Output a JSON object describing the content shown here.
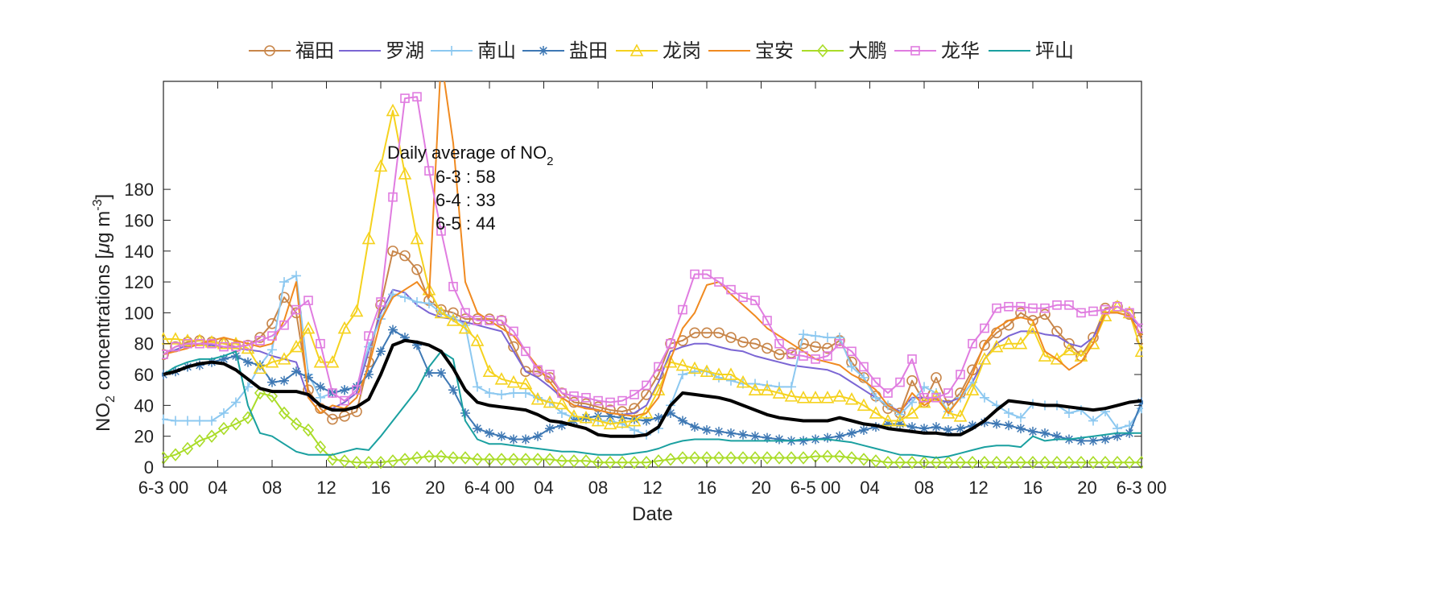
{
  "chart_data": {
    "type": "line",
    "xlabel": "Date",
    "ylabel_parts": [
      "NO",
      "2",
      " concentrations [",
      "μ",
      "g m",
      "-3",
      "]"
    ],
    "ylim": [
      0,
      250
    ],
    "yticks": [
      0,
      20,
      40,
      60,
      80,
      100,
      120,
      140,
      160,
      180
    ],
    "xlim": [
      0,
      72
    ],
    "xticks": [
      {
        "x": 0,
        "label": "6-3 00"
      },
      {
        "x": 4,
        "label": "04"
      },
      {
        "x": 8,
        "label": "08"
      },
      {
        "x": 12,
        "label": "12"
      },
      {
        "x": 16,
        "label": "16"
      },
      {
        "x": 20,
        "label": "20"
      },
      {
        "x": 24,
        "label": "6-4 00"
      },
      {
        "x": 28,
        "label": "04"
      },
      {
        "x": 32,
        "label": "08"
      },
      {
        "x": 36,
        "label": "12"
      },
      {
        "x": 40,
        "label": "16"
      },
      {
        "x": 44,
        "label": "20"
      },
      {
        "x": 48,
        "label": "6-5 00"
      },
      {
        "x": 52,
        "label": "04"
      },
      {
        "x": 56,
        "label": "08"
      },
      {
        "x": 60,
        "label": "12"
      },
      {
        "x": 64,
        "label": "16"
      },
      {
        "x": 68,
        "label": "20"
      },
      {
        "x": 72,
        "label": "6-3 00"
      }
    ],
    "grid": false,
    "legend_position": "top",
    "annotation": {
      "title": "Daily average of NO",
      "title_sub": "2",
      "lines": [
        "6-3 : 58",
        "6-4 : 33",
        "6-5 : 44"
      ]
    },
    "series": [
      {
        "name": "福田",
        "color": "#c8864a",
        "marker": "circle",
        "width": 2,
        "values": [
          73,
          78,
          81,
          82,
          81,
          80,
          78,
          79,
          84,
          93,
          110,
          100,
          50,
          38,
          31,
          33,
          36,
          68,
          105,
          140,
          137,
          128,
          108,
          102,
          100,
          96,
          96,
          96,
          95,
          78,
          62,
          62,
          58,
          48,
          42,
          41,
          39,
          37,
          36,
          38,
          47,
          60,
          80,
          82,
          87,
          87,
          87,
          84,
          81,
          80,
          77,
          73,
          74,
          80,
          78,
          77,
          82,
          68,
          58,
          46,
          38,
          35,
          56,
          42,
          58,
          40,
          48,
          63,
          79,
          87,
          92,
          100,
          95,
          99,
          88,
          80,
          72,
          84,
          103,
          104,
          99,
          83
        ]
      },
      {
        "name": "罗湖",
        "color": "#7b66d4",
        "marker": "none",
        "width": 2,
        "values": [
          73,
          76,
          79,
          80,
          79,
          78,
          77,
          76,
          75,
          72,
          70,
          68,
          45,
          40,
          38,
          42,
          48,
          75,
          100,
          115,
          113,
          105,
          100,
          97,
          96,
          94,
          92,
          90,
          88,
          75,
          62,
          58,
          52,
          45,
          40,
          39,
          37,
          35,
          34,
          35,
          40,
          55,
          75,
          78,
          80,
          80,
          78,
          76,
          75,
          72,
          70,
          68,
          66,
          65,
          64,
          63,
          60,
          55,
          50,
          45,
          40,
          36,
          45,
          45,
          44,
          42,
          45,
          55,
          70,
          80,
          85,
          88,
          88,
          86,
          85,
          80,
          78,
          84,
          100,
          100,
          98,
          90
        ]
      },
      {
        "name": "南山",
        "color": "#8cc8f0",
        "marker": "plus",
        "width": 2,
        "values": [
          31,
          30,
          30,
          30,
          30,
          35,
          42,
          52,
          66,
          76,
          120,
          124,
          60,
          45,
          48,
          50,
          52,
          78,
          96,
          112,
          110,
          107,
          106,
          100,
          97,
          92,
          52,
          48,
          47,
          48,
          48,
          45,
          42,
          35,
          32,
          31,
          30,
          30,
          28,
          24,
          21,
          25,
          40,
          60,
          62,
          62,
          58,
          56,
          54,
          54,
          53,
          52,
          52,
          86,
          85,
          84,
          84,
          65,
          58,
          45,
          40,
          34,
          42,
          52,
          48,
          36,
          45,
          55,
          45,
          40,
          35,
          32,
          41,
          40,
          40,
          35,
          37,
          30,
          36,
          25,
          27,
          38
        ]
      },
      {
        "name": "盐田",
        "color": "#3e78b4",
        "marker": "asterisk",
        "width": 2,
        "values": [
          60,
          62,
          65,
          66,
          68,
          70,
          72,
          68,
          66,
          55,
          56,
          62,
          58,
          52,
          48,
          50,
          52,
          60,
          75,
          89,
          84,
          79,
          61,
          61,
          50,
          35,
          25,
          22,
          20,
          18,
          18,
          20,
          25,
          27,
          30,
          32,
          33,
          33,
          32,
          31,
          30,
          32,
          35,
          30,
          26,
          24,
          23,
          22,
          21,
          20,
          19,
          18,
          17,
          17,
          18,
          19,
          20,
          22,
          24,
          26,
          28,
          28,
          26,
          25,
          26,
          24,
          25,
          27,
          29,
          28,
          27,
          25,
          23,
          22,
          20,
          18,
          17,
          17,
          18,
          20,
          22,
          42
        ]
      },
      {
        "name": "龙岗",
        "color": "#f5d21e",
        "marker": "triangle",
        "width": 2,
        "values": [
          83,
          83,
          82,
          82,
          81,
          80,
          80,
          77,
          64,
          68,
          70,
          78,
          90,
          68,
          68,
          90,
          101,
          148,
          195,
          231,
          190,
          148,
          115,
          100,
          95,
          90,
          82,
          62,
          57,
          55,
          54,
          44,
          42,
          41,
          33,
          32,
          30,
          28,
          29,
          30,
          35,
          50,
          68,
          66,
          64,
          62,
          60,
          60,
          55,
          50,
          50,
          48,
          46,
          45,
          45,
          45,
          46,
          44,
          40,
          35,
          30,
          30,
          35,
          42,
          46,
          35,
          33,
          50,
          70,
          78,
          80,
          80,
          90,
          72,
          70,
          76,
          72,
          80,
          98,
          104,
          100,
          75
        ]
      },
      {
        "name": "宝安",
        "color": "#f08a20",
        "marker": "none",
        "width": 2,
        "values": [
          73,
          75,
          77,
          80,
          82,
          84,
          82,
          80,
          78,
          80,
          95,
          120,
          45,
          35,
          40,
          38,
          45,
          65,
          95,
          110,
          115,
          120,
          110,
          265,
          210,
          120,
          100,
          95,
          90,
          85,
          75,
          65,
          55,
          45,
          40,
          38,
          37,
          35,
          34,
          33,
          35,
          45,
          70,
          90,
          100,
          118,
          120,
          112,
          105,
          98,
          90,
          85,
          80,
          75,
          70,
          68,
          66,
          60,
          56,
          50,
          40,
          35,
          48,
          40,
          45,
          35,
          45,
          60,
          80,
          90,
          95,
          97,
          95,
          75,
          70,
          63,
          68,
          80,
          100,
          100,
          98,
          85
        ]
      },
      {
        "name": "大鹏",
        "color": "#aadc28",
        "marker": "diamond",
        "width": 2,
        "values": [
          6,
          8,
          12,
          17,
          20,
          25,
          28,
          32,
          48,
          46,
          35,
          28,
          24,
          13,
          5,
          4,
          3,
          3,
          3,
          4,
          5,
          6,
          7,
          7,
          6,
          6,
          5,
          5,
          5,
          5,
          5,
          5,
          5,
          4,
          4,
          4,
          3,
          3,
          3,
          3,
          3,
          4,
          5,
          6,
          6,
          6,
          6,
          6,
          6,
          6,
          6,
          6,
          6,
          6,
          7,
          7,
          7,
          6,
          5,
          4,
          3,
          3,
          3,
          3,
          3,
          3,
          3,
          3,
          3,
          3,
          3,
          3,
          3,
          3,
          3,
          3,
          3,
          3,
          3,
          3,
          3,
          3
        ]
      },
      {
        "name": "龙华",
        "color": "#e07ce0",
        "marker": "square",
        "width": 2,
        "values": [
          73,
          78,
          80,
          80,
          80,
          78,
          78,
          79,
          82,
          85,
          92,
          102,
          108,
          80,
          48,
          43,
          50,
          85,
          107,
          175,
          239,
          240,
          192,
          153,
          117,
          100,
          95,
          95,
          95,
          88,
          75,
          63,
          60,
          48,
          46,
          45,
          43,
          42,
          43,
          47,
          53,
          65,
          80,
          102,
          125,
          125,
          120,
          115,
          110,
          108,
          95,
          80,
          73,
          72,
          70,
          72,
          80,
          75,
          65,
          55,
          48,
          55,
          70,
          45,
          45,
          48,
          60,
          80,
          90,
          103,
          104,
          104,
          103,
          103,
          105,
          105,
          100,
          101,
          102,
          104,
          100,
          90
        ]
      },
      {
        "name": "坪山",
        "color": "#1aa0a0",
        "marker": "none",
        "width": 2,
        "values": [
          60,
          65,
          68,
          70,
          70,
          72,
          75,
          40,
          22,
          20,
          15,
          10,
          8,
          8,
          8,
          10,
          12,
          11,
          20,
          30,
          40,
          50,
          65,
          75,
          70,
          30,
          18,
          15,
          15,
          14,
          13,
          12,
          11,
          10,
          10,
          9,
          8,
          8,
          8,
          9,
          10,
          12,
          15,
          17,
          18,
          18,
          18,
          17,
          17,
          17,
          17,
          17,
          17,
          18,
          18,
          18,
          17,
          16,
          14,
          12,
          10,
          8,
          8,
          7,
          6,
          7,
          9,
          11,
          13,
          14,
          14,
          13,
          20,
          17,
          18,
          18,
          19,
          20,
          21,
          22,
          22,
          22
        ]
      },
      {
        "name": "",
        "color": "#000000",
        "marker": "none",
        "width": 4,
        "values": [
          60,
          62,
          65,
          67,
          68,
          67,
          63,
          57,
          51,
          49,
          49,
          49,
          47,
          40,
          37,
          37,
          39,
          44,
          60,
          79,
          82,
          81,
          79,
          75,
          64,
          50,
          42,
          40,
          39,
          38,
          37,
          34,
          30,
          29,
          27,
          25,
          21,
          20,
          20,
          20,
          21,
          26,
          40,
          48,
          47,
          46,
          45,
          43,
          40,
          37,
          34,
          32,
          31,
          30,
          30,
          30,
          32,
          30,
          28,
          27,
          25,
          24,
          23,
          22,
          22,
          21,
          21,
          25,
          30,
          37,
          43,
          42,
          41,
          40,
          40,
          39,
          38,
          37,
          38,
          40,
          42,
          43
        ]
      }
    ]
  }
}
